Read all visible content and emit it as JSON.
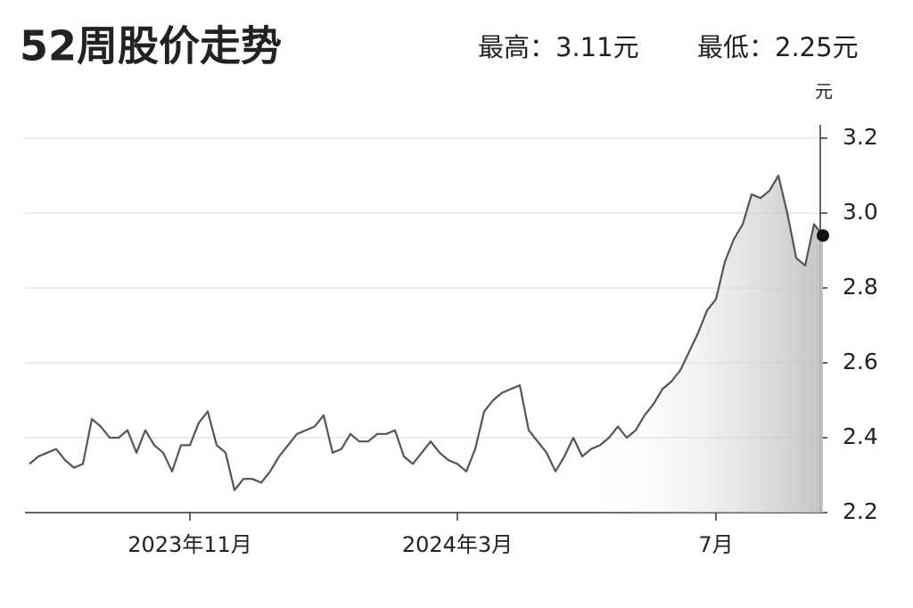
{
  "chart_data": {
    "type": "line",
    "title": "52周股价走势",
    "high_label": "最高：3.11元",
    "low_label": "最低：2.25元",
    "y_unit": "元",
    "categories": [
      null,
      null,
      null,
      null,
      null,
      null,
      null,
      null,
      null,
      null,
      null,
      null,
      null,
      null,
      null,
      null,
      null,
      null,
      "2023年11月",
      null,
      null,
      null,
      null,
      null,
      null,
      null,
      null,
      null,
      null,
      null,
      null,
      null,
      null,
      null,
      null,
      null,
      null,
      null,
      null,
      null,
      null,
      null,
      null,
      null,
      null,
      null,
      null,
      null,
      "2024年3月",
      null,
      null,
      null,
      null,
      null,
      null,
      null,
      null,
      null,
      null,
      null,
      null,
      null,
      null,
      null,
      null,
      null,
      null,
      null,
      null,
      null,
      null,
      null,
      null,
      null,
      null,
      null,
      null,
      "7月",
      null,
      null,
      null,
      null,
      null,
      null,
      null,
      null,
      null,
      null,
      null,
      null
    ],
    "series": [
      {
        "name": "股价",
        "color": "#555555",
        "values": [
          2.33,
          2.35,
          2.36,
          2.37,
          2.34,
          2.32,
          2.33,
          2.45,
          2.43,
          2.4,
          2.4,
          2.42,
          2.36,
          2.42,
          2.38,
          2.36,
          2.31,
          2.38,
          2.38,
          2.44,
          2.47,
          2.38,
          2.36,
          2.26,
          2.29,
          2.29,
          2.28,
          2.31,
          2.35,
          2.38,
          2.41,
          2.42,
          2.43,
          2.46,
          2.36,
          2.37,
          2.41,
          2.39,
          2.39,
          2.41,
          2.41,
          2.42,
          2.35,
          2.33,
          2.36,
          2.39,
          2.36,
          2.34,
          2.33,
          2.31,
          2.37,
          2.47,
          2.5,
          2.52,
          2.53,
          2.54,
          2.42,
          2.39,
          2.36,
          2.31,
          2.35,
          2.4,
          2.35,
          2.37,
          2.38,
          2.4,
          2.43,
          2.4,
          2.42,
          2.46,
          2.49,
          2.53,
          2.55,
          2.58,
          2.63,
          2.68,
          2.74,
          2.77,
          2.87,
          2.93,
          2.97,
          3.05,
          3.04,
          3.06,
          3.1,
          3.0,
          2.88,
          2.86,
          2.97,
          2.94
        ]
      }
    ],
    "ylim": [
      2.2,
      3.2
    ],
    "yticks": [
      {
        "value": 2.2,
        "label": "2.2"
      },
      2.4,
      2.6,
      2.8,
      {
        "value": 3.0,
        "label": "3.0"
      },
      3.2
    ],
    "grid": true
  }
}
